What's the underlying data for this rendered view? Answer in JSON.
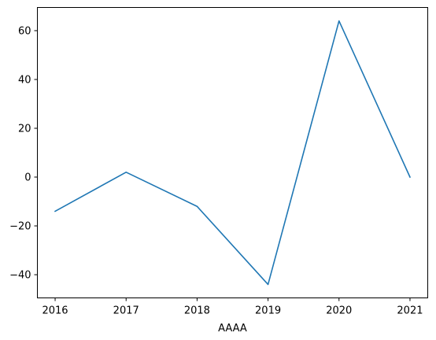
{
  "chart_data": {
    "type": "line",
    "x": [
      2016,
      2017,
      2018,
      2019,
      2020,
      2021
    ],
    "series": [
      {
        "values": [
          -14,
          2,
          -12,
          -44,
          64,
          0
        ],
        "color": "#1f77b4"
      }
    ],
    "xlabel": "AAAA",
    "ylabel": "",
    "xlim": [
      2015.75,
      2021.25
    ],
    "ylim": [
      -49.5,
      69.5
    ],
    "x_ticks": [
      2016,
      2017,
      2018,
      2019,
      2020,
      2021
    ],
    "y_ticks": [
      -40,
      -20,
      0,
      20,
      40,
      60
    ],
    "grid": false
  }
}
